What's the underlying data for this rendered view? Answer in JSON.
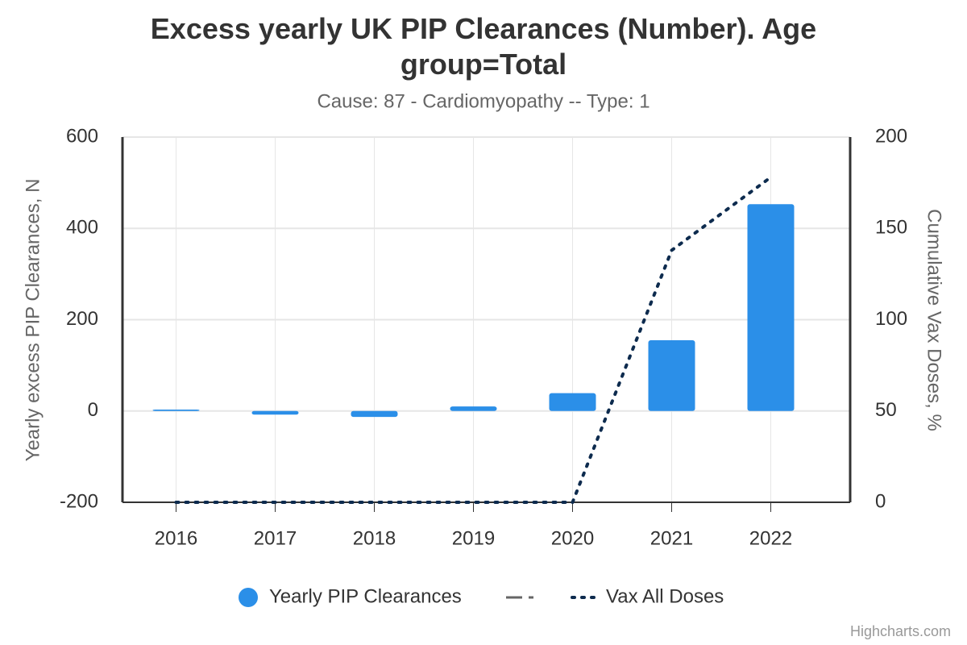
{
  "chart_data": {
    "type": "bar",
    "title": "Excess yearly UK PIP Clearances (Number). Age group=Total",
    "subtitle": "Cause: 87 - Cardiomyopathy -- Type: 1",
    "y_label": "Yearly excess PIP Clearances, N",
    "y2_label": "Cumulative Vax Doses, %",
    "categories": [
      "2016",
      "2017",
      "2018",
      "2019",
      "2020",
      "2021",
      "2022"
    ],
    "series": [
      {
        "name": "Yearly PIP Clearances",
        "type": "bar",
        "color": "#2b8fe8",
        "values": [
          3,
          -8,
          -13,
          10,
          39,
          155,
          453
        ]
      },
      {
        "name": "Vax All Doses",
        "type": "line",
        "axis": "y2",
        "color": "#0d2b4e",
        "values": [
          0,
          0,
          0,
          0,
          0,
          138,
          178
        ]
      }
    ],
    "ylim": [
      -200,
      600
    ],
    "yticks": [
      -200,
      0,
      200,
      400,
      600
    ],
    "y2lim": [
      0,
      200
    ],
    "y2ticks": [
      0,
      50,
      100,
      150,
      200
    ],
    "grid": true,
    "legend": "bottom",
    "credits": "Highcharts.com"
  }
}
